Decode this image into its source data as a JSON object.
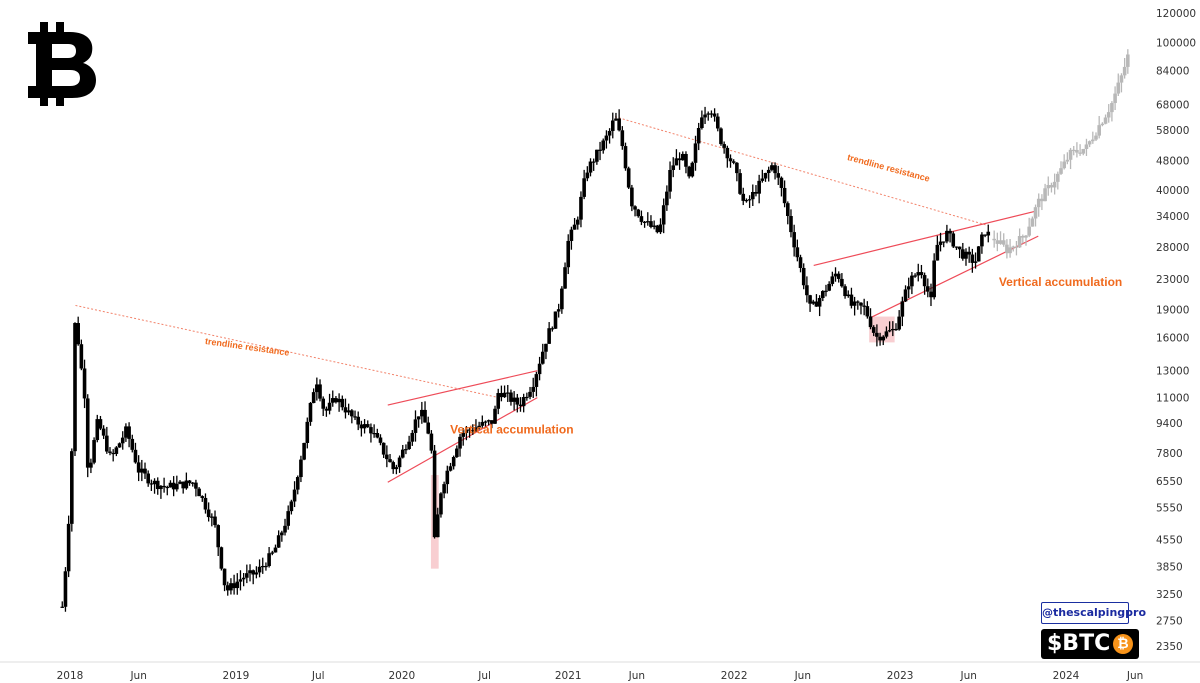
{
  "branding": {
    "logo_icon": "bitcoin-logo-icon",
    "handle": "@thescalpingpro",
    "ticker": "$BTC",
    "ticker_icon": "bitcoin-coin-icon",
    "coin_symbol": "₿"
  },
  "chart_data": {
    "type": "candlestick",
    "scale": "log",
    "ylim": [
      2100,
      125000
    ],
    "y_ticks": [
      2350,
      2750,
      3250,
      3850,
      4550,
      5550,
      6550,
      7800,
      9400,
      11000,
      13000,
      16000,
      19000,
      23000,
      28000,
      34000,
      40000,
      48000,
      58000,
      68000,
      84000,
      100000,
      120000
    ],
    "x_ticks": [
      {
        "label": "2018",
        "date": "2018-01-01"
      },
      {
        "label": "Jun",
        "date": "2018-06-01"
      },
      {
        "label": "2019",
        "date": "2019-01-01"
      },
      {
        "label": "Jul",
        "date": "2019-07-01"
      },
      {
        "label": "2020",
        "date": "2020-01-01"
      },
      {
        "label": "Jul",
        "date": "2020-07-01"
      },
      {
        "label": "2021",
        "date": "2021-01-01"
      },
      {
        "label": "Jun",
        "date": "2021-06-01"
      },
      {
        "label": "2022",
        "date": "2022-01-01"
      },
      {
        "label": "Jun",
        "date": "2022-06-01"
      },
      {
        "label": "2023",
        "date": "2023-01-01"
      },
      {
        "label": "Jun",
        "date": "2023-06-01"
      },
      {
        "label": "2024",
        "date": "2024-01-01"
      },
      {
        "label": "Jun",
        "date": "2024-06-01"
      }
    ],
    "price_path": [
      [
        "2017-12-15",
        3000
      ],
      [
        "2017-12-25",
        4200
      ],
      [
        "2018-01-01",
        6000
      ],
      [
        "2018-01-06",
        8500
      ],
      [
        "2018-01-13",
        19500
      ],
      [
        "2018-01-20",
        15000
      ],
      [
        "2018-02-03",
        11000
      ],
      [
        "2018-02-10",
        6800
      ],
      [
        "2018-03-03",
        9500
      ],
      [
        "2018-04-01",
        7500
      ],
      [
        "2018-05-05",
        9000
      ],
      [
        "2018-06-01",
        7000
      ],
      [
        "2018-07-01",
        6500
      ],
      [
        "2018-08-01",
        6300
      ],
      [
        "2018-10-01",
        6500
      ],
      [
        "2018-11-15",
        5000
      ],
      [
        "2018-12-10",
        3300
      ],
      [
        "2019-01-15",
        3600
      ],
      [
        "2019-02-15",
        3700
      ],
      [
        "2019-03-25",
        4200
      ],
      [
        "2019-05-01",
        5500
      ],
      [
        "2019-06-01",
        8500
      ],
      [
        "2019-06-26",
        12500
      ],
      [
        "2019-07-15",
        10000
      ],
      [
        "2019-08-10",
        11000
      ],
      [
        "2019-09-20",
        9500
      ],
      [
        "2019-10-25",
        9000
      ],
      [
        "2019-12-15",
        7000
      ],
      [
        "2020-01-15",
        8500
      ],
      [
        "2020-02-10",
        10200
      ],
      [
        "2020-03-05",
        8500
      ],
      [
        "2020-03-13",
        4500
      ],
      [
        "2020-03-28",
        6300
      ],
      [
        "2020-05-10",
        8800
      ],
      [
        "2020-06-15",
        9200
      ],
      [
        "2020-07-20",
        9500
      ],
      [
        "2020-08-01",
        11500
      ],
      [
        "2020-09-15",
        10500
      ],
      [
        "2020-10-15",
        12000
      ],
      [
        "2020-11-15",
        16000
      ],
      [
        "2020-12-10",
        19000
      ],
      [
        "2021-01-01",
        29000
      ],
      [
        "2021-01-20",
        33000
      ],
      [
        "2021-02-10",
        45000
      ],
      [
        "2021-03-01",
        49000
      ],
      [
        "2021-04-01",
        57000
      ],
      [
        "2021-04-14",
        63000
      ],
      [
        "2021-05-01",
        52000
      ],
      [
        "2021-05-20",
        37000
      ],
      [
        "2021-06-15",
        33000
      ],
      [
        "2021-07-20",
        30500
      ],
      [
        "2021-08-15",
        46000
      ],
      [
        "2021-09-07",
        50000
      ],
      [
        "2021-09-25",
        42000
      ],
      [
        "2021-10-20",
        64000
      ],
      [
        "2021-11-10",
        67000
      ],
      [
        "2021-12-01",
        55000
      ],
      [
        "2022-01-01",
        46000
      ],
      [
        "2022-01-24",
        36000
      ],
      [
        "2022-03-28",
        47000
      ],
      [
        "2022-04-15",
        40000
      ],
      [
        "2022-05-12",
        29000
      ],
      [
        "2022-06-18",
        19000
      ],
      [
        "2022-07-15",
        21000
      ],
      [
        "2022-08-15",
        24000
      ],
      [
        "2022-09-15",
        19500
      ],
      [
        "2022-10-15",
        19200
      ],
      [
        "2022-11-09",
        16000
      ],
      [
        "2022-12-20",
        16800
      ],
      [
        "2023-01-20",
        22500
      ],
      [
        "2023-02-15",
        24500
      ],
      [
        "2023-03-10",
        20000
      ],
      [
        "2023-03-20",
        28000
      ],
      [
        "2023-04-14",
        30500
      ],
      [
        "2023-05-15",
        27000
      ],
      [
        "2023-06-15",
        25500
      ],
      [
        "2023-07-05",
        31000
      ],
      [
        "2023-07-20",
        29900
      ]
    ],
    "projection_path": [
      [
        "2023-07-27",
        29500
      ],
      [
        "2023-08-25",
        27500
      ],
      [
        "2023-10-01",
        30000
      ],
      [
        "2023-11-01",
        37000
      ],
      [
        "2023-12-15",
        44000
      ],
      [
        "2024-01-10",
        50000
      ],
      [
        "2024-02-15",
        52000
      ],
      [
        "2024-03-15",
        60000
      ],
      [
        "2024-04-10",
        68000
      ],
      [
        "2024-05-01",
        80000
      ],
      [
        "2024-05-20",
        95000
      ]
    ],
    "trendlines": [
      {
        "kind": "resistance",
        "points": [
          [
            "2018-01-13",
            19500
          ],
          [
            "2020-08-01",
            11000
          ]
        ]
      },
      {
        "kind": "resistance",
        "points": [
          [
            "2021-04-14",
            63000
          ],
          [
            "2023-07-15",
            32000
          ]
        ]
      },
      {
        "kind": "channel",
        "points": [
          [
            "2019-12-01",
            10500
          ],
          [
            "2020-10-25",
            13000
          ]
        ]
      },
      {
        "kind": "channel",
        "points": [
          [
            "2019-12-01",
            6500
          ],
          [
            "2020-10-25",
            11000
          ]
        ]
      },
      {
        "kind": "channel",
        "points": [
          [
            "2022-06-25",
            25000
          ],
          [
            "2023-10-25",
            35000
          ]
        ]
      },
      {
        "kind": "channel",
        "points": [
          [
            "2022-10-25",
            18000
          ],
          [
            "2023-11-01",
            30000
          ]
        ]
      }
    ],
    "highlights": [
      {
        "from": "2020-03-05",
        "to": "2020-03-22",
        "low": 3800,
        "high": 6800
      },
      {
        "from": "2022-10-25",
        "to": "2022-12-20",
        "low": 15500,
        "high": 18200
      }
    ],
    "annotations": [
      {
        "text": "trendline resistance",
        "date": "2019-01-25",
        "price": 14800,
        "angle": 8,
        "size": 9
      },
      {
        "text": "Vertical accumulation",
        "date": "2020-08-30",
        "price": 8800,
        "angle": 0,
        "size": 12
      },
      {
        "text": "trendline resistance",
        "date": "2022-12-05",
        "price": 45000,
        "angle": 15,
        "size": 9
      },
      {
        "text": "Vertical accumulation",
        "date": "2023-12-20",
        "price": 22000,
        "angle": 0,
        "size": 12
      }
    ],
    "colors": {
      "candles": "#000000",
      "projection": "#b8b8b8",
      "trendline_resistance": "#f2836b",
      "channel": "#ee4b58",
      "highlight": "#f7c6c9",
      "annotation": "#f06a1e"
    },
    "grid": false
  }
}
